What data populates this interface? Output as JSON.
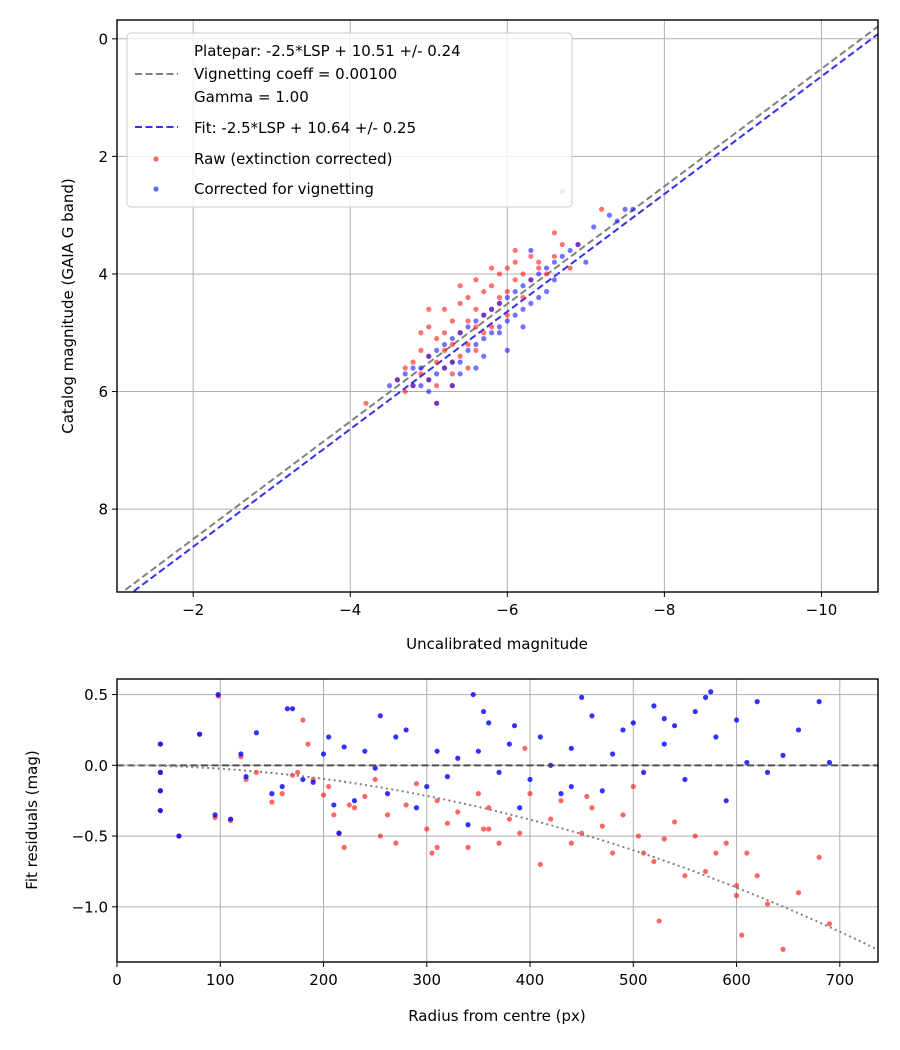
{
  "chart_data": [
    {
      "type": "scatter",
      "title": "",
      "xlabel": "Uncalibrated magnitude",
      "ylabel": "Catalog magnitude (GAIA G band)",
      "xlim": [
        -1.03,
        -10.72
      ],
      "ylim": [
        9.41,
        -0.32
      ],
      "x_inverted": true,
      "y_inverted": true,
      "grid": true,
      "xticks": [
        -2,
        -4,
        -6,
        -8,
        -10
      ],
      "xtick_labels": [
        "−2",
        "−4",
        "−6",
        "−8",
        "−10"
      ],
      "yticks": [
        0,
        2,
        4,
        6,
        8
      ],
      "ytick_labels": [
        "0",
        "2",
        "4",
        "6",
        "8"
      ],
      "legend_position": "top-left",
      "lines": [
        {
          "name": "Platepar: -2.5*LSP + 10.51 +/- 0.24\nVignetting coeff = 0.00100\nGamma = 1.00",
          "legend_lines": [
            "Platepar: -2.5*LSP + 10.51 +/- 0.24",
            "Vignetting coeff = 0.00100",
            "Gamma = 1.00"
          ],
          "slope": 1.0,
          "intercept": 10.51,
          "color": "#808080",
          "style": "dashed"
        },
        {
          "name": "Fit: -2.5*LSP + 10.64 +/- 0.25",
          "legend_lines": [
            "Fit: -2.5*LSP + 10.64 +/- 0.25"
          ],
          "slope": 1.0,
          "intercept": 10.64,
          "color": "#3333ee",
          "style": "dashed"
        }
      ],
      "series": [
        {
          "name": "Raw (extinction corrected)",
          "color": "#ff0000",
          "x": [
            -4.2,
            -4.6,
            -4.7,
            -4.8,
            -4.8,
            -4.9,
            -4.9,
            -5.0,
            -5.0,
            -5.0,
            -5.1,
            -5.1,
            -5.1,
            -5.2,
            -5.2,
            -5.2,
            -5.3,
            -5.3,
            -5.3,
            -5.3,
            -5.4,
            -5.4,
            -5.4,
            -5.5,
            -5.5,
            -5.5,
            -5.5,
            -5.6,
            -5.6,
            -5.6,
            -5.7,
            -5.7,
            -5.7,
            -5.8,
            -5.8,
            -5.8,
            -5.9,
            -5.9,
            -6.0,
            -6.0,
            -6.0,
            -6.1,
            -6.1,
            -6.2,
            -6.2,
            -6.3,
            -6.3,
            -6.4,
            -6.5,
            -6.6,
            -6.7,
            -6.8,
            -6.9,
            -7.2,
            -6.7,
            -6.6,
            -5.0,
            -4.9,
            -5.2,
            -5.4,
            -5.6,
            -5.9,
            -6.1,
            -6.4,
            -5.3,
            -5.1,
            -4.7,
            -5.8
          ],
          "y": [
            6.2,
            5.8,
            6.0,
            5.5,
            5.9,
            5.3,
            5.7,
            4.9,
            5.4,
            5.8,
            5.1,
            5.5,
            6.2,
            4.6,
            5.0,
            5.6,
            4.8,
            5.2,
            5.5,
            5.9,
            4.5,
            5.0,
            5.4,
            4.4,
            4.8,
            5.2,
            5.6,
            4.6,
            4.9,
            5.3,
            4.3,
            4.7,
            5.0,
            4.2,
            4.6,
            4.9,
            4.0,
            4.4,
            3.9,
            4.3,
            4.7,
            3.8,
            4.1,
            4.0,
            4.4,
            3.7,
            4.1,
            3.9,
            4.0,
            3.7,
            3.5,
            3.9,
            3.5,
            2.9,
            2.6,
            3.3,
            4.6,
            5.0,
            5.3,
            4.2,
            4.1,
            4.5,
            3.6,
            3.8,
            5.7,
            5.9,
            5.6,
            3.9
          ]
        },
        {
          "name": "Corrected for vignetting",
          "color": "#0000ff",
          "x": [
            -4.5,
            -4.6,
            -4.7,
            -4.8,
            -4.9,
            -4.9,
            -5.0,
            -5.0,
            -5.1,
            -5.1,
            -5.2,
            -5.2,
            -5.3,
            -5.3,
            -5.4,
            -5.4,
            -5.5,
            -5.5,
            -5.6,
            -5.6,
            -5.7,
            -5.7,
            -5.8,
            -5.8,
            -5.9,
            -5.9,
            -6.0,
            -6.0,
            -6.1,
            -6.1,
            -6.2,
            -6.2,
            -6.3,
            -6.3,
            -6.4,
            -6.4,
            -6.5,
            -6.5,
            -6.6,
            -6.7,
            -6.8,
            -6.9,
            -7.0,
            -7.1,
            -7.3,
            -7.4,
            -7.5,
            -7.6,
            -5.0,
            -5.3,
            -5.6,
            -5.9,
            -6.2,
            -6.6,
            -6.3,
            -5.1,
            -4.8,
            -5.4,
            -5.7,
            -6.0
          ],
          "y": [
            5.9,
            5.8,
            5.7,
            5.6,
            5.6,
            5.9,
            5.4,
            5.8,
            5.3,
            5.7,
            5.2,
            5.6,
            5.1,
            5.5,
            5.0,
            5.5,
            4.9,
            5.3,
            4.8,
            5.2,
            4.7,
            5.1,
            4.6,
            5.0,
            4.5,
            4.9,
            4.4,
            4.8,
            4.3,
            4.7,
            4.2,
            4.6,
            4.1,
            4.5,
            4.0,
            4.4,
            3.9,
            4.3,
            3.8,
            3.7,
            3.6,
            3.5,
            3.8,
            3.2,
            3.0,
            3.1,
            2.9,
            2.9,
            6.0,
            5.9,
            5.6,
            5.0,
            4.9,
            4.1,
            3.6,
            6.2,
            5.9,
            5.7,
            5.4,
            5.3
          ]
        }
      ]
    },
    {
      "type": "scatter",
      "title": "",
      "xlabel": "Radius from centre (px)",
      "ylabel": "Fit residuals (mag)",
      "xlim": [
        0,
        737
      ],
      "ylim": [
        -1.39,
        0.61
      ],
      "grid": true,
      "xticks": [
        0,
        100,
        200,
        300,
        400,
        500,
        600,
        700
      ],
      "xtick_labels": [
        "0",
        "100",
        "200",
        "300",
        "400",
        "500",
        "600",
        "700"
      ],
      "yticks": [
        0.5,
        0.0,
        -0.5,
        -1.0
      ],
      "ytick_labels": [
        "0.5",
        "0.0",
        "−0.5",
        "−1.0"
      ],
      "lines": [
        {
          "name": "zero",
          "type": "hline",
          "y": 0.0,
          "color": "#444444",
          "style": "dashed"
        },
        {
          "name": "vignetting-curve",
          "type": "quadratic",
          "coeff": -2.4e-06,
          "color": "#808080",
          "style": "dotted"
        }
      ],
      "series": [
        {
          "name": "Raw (extinction corrected)",
          "color": "#ff0000",
          "x": [
            42,
            42,
            42,
            42,
            60,
            80,
            95,
            98,
            110,
            120,
            125,
            135,
            150,
            160,
            170,
            180,
            190,
            200,
            205,
            210,
            215,
            220,
            225,
            230,
            240,
            250,
            255,
            262,
            270,
            280,
            290,
            300,
            305,
            310,
            320,
            330,
            340,
            350,
            355,
            360,
            370,
            380,
            390,
            400,
            410,
            420,
            430,
            440,
            450,
            460,
            470,
            480,
            490,
            500,
            505,
            510,
            520,
            530,
            540,
            550,
            560,
            570,
            580,
            590,
            600,
            605,
            610,
            620,
            630,
            645,
            660,
            680,
            690,
            175,
            185,
            310,
            360,
            395,
            455,
            525,
            600
          ],
          "y": [
            0.15,
            -0.18,
            -0.32,
            -0.05,
            -0.5,
            0.22,
            -0.37,
            0.49,
            -0.39,
            0.06,
            -0.1,
            -0.05,
            -0.26,
            -0.2,
            -0.07,
            0.32,
            -0.1,
            -0.21,
            -0.15,
            -0.35,
            -0.48,
            -0.58,
            -0.28,
            -0.3,
            -0.22,
            -0.1,
            -0.5,
            -0.35,
            -0.55,
            -0.28,
            -0.13,
            -0.45,
            -0.62,
            -0.25,
            -0.41,
            -0.33,
            -0.58,
            -0.2,
            -0.45,
            -0.3,
            -0.55,
            -0.38,
            -0.48,
            -0.2,
            -0.7,
            -0.38,
            -0.25,
            -0.55,
            -0.48,
            -0.3,
            -0.43,
            -0.62,
            -0.35,
            -0.15,
            -0.5,
            -0.62,
            -0.68,
            -0.52,
            -0.4,
            -0.78,
            -0.5,
            -0.75,
            -0.62,
            -0.55,
            -0.92,
            -1.2,
            -0.62,
            -0.78,
            -0.98,
            -1.3,
            -0.9,
            -0.65,
            -1.12,
            -0.05,
            0.15,
            -0.58,
            -0.45,
            0.12,
            -0.22,
            -1.1,
            -0.85
          ]
        },
        {
          "name": "Corrected for vignetting",
          "color": "#0000ff",
          "x": [
            42,
            42,
            42,
            42,
            60,
            80,
            95,
            98,
            110,
            120,
            125,
            135,
            150,
            160,
            170,
            180,
            190,
            200,
            205,
            210,
            215,
            220,
            230,
            240,
            250,
            255,
            262,
            270,
            280,
            290,
            300,
            310,
            320,
            330,
            340,
            350,
            355,
            360,
            370,
            380,
            390,
            400,
            410,
            420,
            430,
            440,
            450,
            460,
            470,
            480,
            490,
            500,
            510,
            520,
            530,
            540,
            550,
            560,
            570,
            580,
            590,
            600,
            610,
            620,
            630,
            645,
            660,
            680,
            690,
            165,
            345,
            385,
            440,
            530,
            575
          ],
          "y": [
            0.15,
            -0.18,
            -0.32,
            -0.05,
            -0.5,
            0.22,
            -0.35,
            0.5,
            -0.38,
            0.08,
            -0.08,
            0.23,
            -0.2,
            -0.15,
            0.4,
            -0.1,
            -0.12,
            0.08,
            0.2,
            -0.28,
            -0.48,
            0.13,
            -0.25,
            0.1,
            -0.02,
            0.35,
            -0.2,
            0.2,
            0.25,
            -0.3,
            -0.15,
            0.1,
            -0.08,
            0.05,
            -0.42,
            0.1,
            0.38,
            0.3,
            -0.05,
            0.15,
            -0.3,
            -0.1,
            0.2,
            0.0,
            -0.2,
            0.12,
            0.48,
            0.35,
            -0.18,
            0.08,
            0.25,
            0.3,
            -0.05,
            0.42,
            0.15,
            0.28,
            -0.1,
            0.38,
            0.48,
            0.2,
            -0.25,
            0.32,
            0.02,
            0.45,
            -0.05,
            0.07,
            0.25,
            0.45,
            0.02,
            0.4,
            0.5,
            0.28,
            -0.15,
            0.33,
            0.52
          ]
        }
      ]
    }
  ]
}
